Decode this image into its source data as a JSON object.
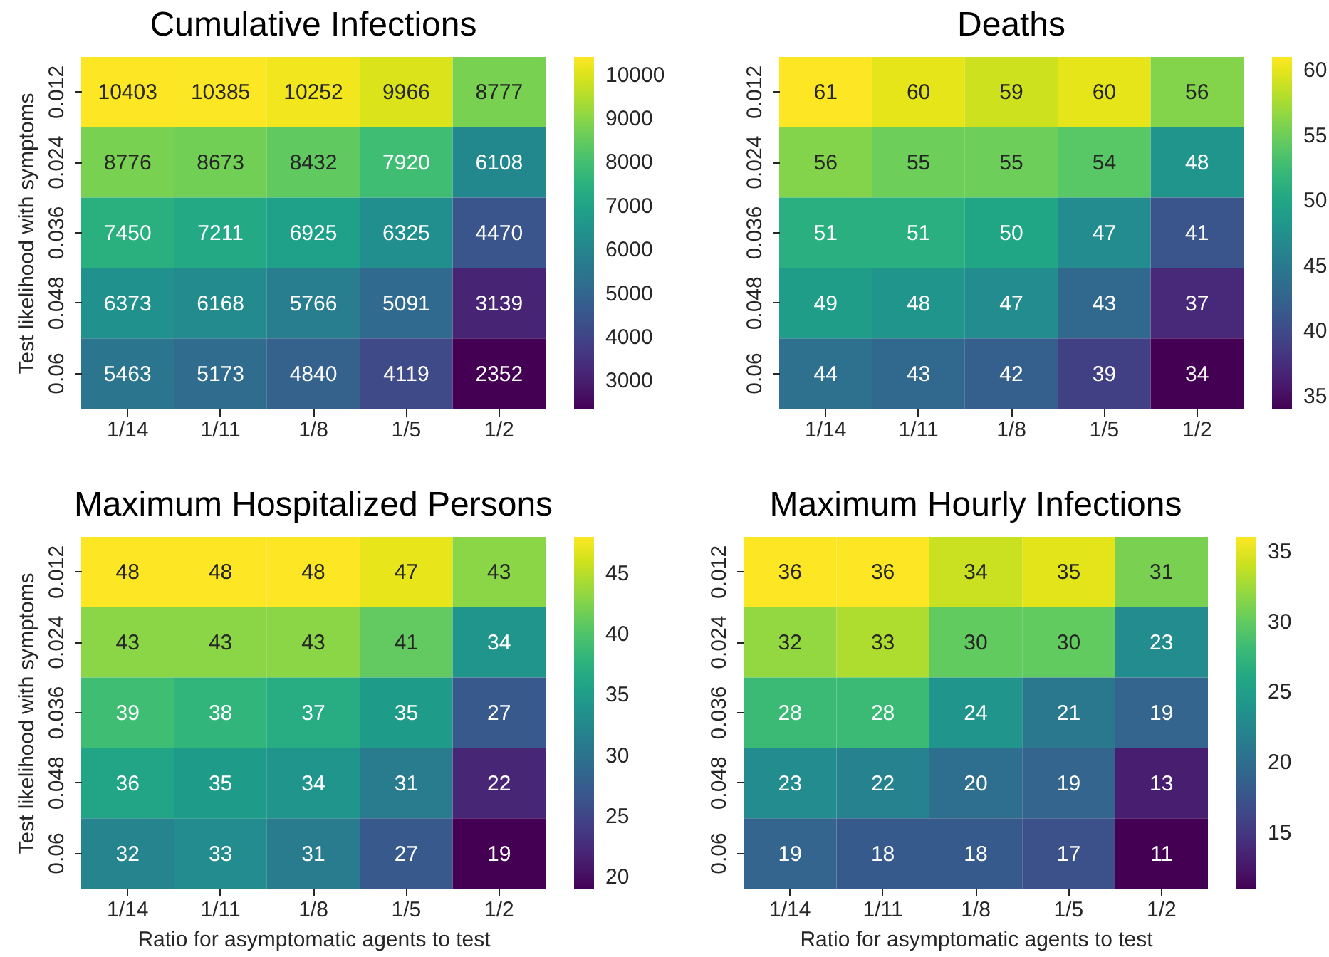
{
  "chart_data": [
    {
      "type": "heatmap",
      "title": "Cumulative Infections",
      "ylabel": "Test likelihood with symptoms",
      "categories": [
        "1/14",
        "1/11",
        "1/8",
        "1/5",
        "1/2"
      ],
      "y_categories": [
        "0.012",
        "0.024",
        "0.036",
        "0.048",
        "0.06"
      ],
      "cells": [
        [
          10403,
          10385,
          10252,
          9966,
          8777
        ],
        [
          8776,
          8673,
          8432,
          7920,
          6108
        ],
        [
          7450,
          7211,
          6925,
          6325,
          4470
        ],
        [
          6373,
          6168,
          5766,
          5091,
          3139
        ],
        [
          5463,
          5173,
          4840,
          4119,
          2352
        ]
      ],
      "clim": [
        2352,
        10403
      ],
      "cticks": [
        3000,
        4000,
        5000,
        6000,
        7000,
        8000,
        9000,
        10000
      ],
      "data_labels": true
    },
    {
      "type": "heatmap",
      "title": "Deaths",
      "categories": [
        "1/14",
        "1/11",
        "1/8",
        "1/5",
        "1/2"
      ],
      "y_categories": [
        "0.012",
        "0.024",
        "0.036",
        "0.048",
        "0.06"
      ],
      "cells": [
        [
          61,
          60,
          59,
          60,
          56
        ],
        [
          56,
          55,
          55,
          54,
          48
        ],
        [
          51,
          51,
          50,
          47,
          41
        ],
        [
          49,
          48,
          47,
          43,
          37
        ],
        [
          44,
          43,
          42,
          39,
          34
        ]
      ],
      "clim": [
        34,
        61
      ],
      "cticks": [
        35,
        40,
        45,
        50,
        55,
        60
      ],
      "data_labels": true
    },
    {
      "type": "heatmap",
      "title": "Maximum Hospitalized Persons",
      "xlabel": "Ratio for asymptomatic agents to test",
      "ylabel": "Test likelihood with symptoms",
      "categories": [
        "1/14",
        "1/11",
        "1/8",
        "1/5",
        "1/2"
      ],
      "y_categories": [
        "0.012",
        "0.024",
        "0.036",
        "0.048",
        "0.06"
      ],
      "cells": [
        [
          48,
          48,
          48,
          47,
          43
        ],
        [
          43,
          43,
          43,
          41,
          34
        ],
        [
          39,
          38,
          37,
          35,
          27
        ],
        [
          36,
          35,
          34,
          31,
          22
        ],
        [
          32,
          33,
          31,
          27,
          19
        ]
      ],
      "clim": [
        19,
        48
      ],
      "cticks": [
        20,
        25,
        30,
        35,
        40,
        45
      ],
      "data_labels": true
    },
    {
      "type": "heatmap",
      "title": "Maximum Hourly Infections",
      "xlabel": "Ratio for asymptomatic agents to test",
      "categories": [
        "1/14",
        "1/11",
        "1/8",
        "1/5",
        "1/2"
      ],
      "y_categories": [
        "0.012",
        "0.024",
        "0.036",
        "0.048",
        "0.06"
      ],
      "cells": [
        [
          36,
          36,
          34,
          35,
          31
        ],
        [
          32,
          33,
          30,
          30,
          23
        ],
        [
          28,
          28,
          24,
          21,
          19
        ],
        [
          23,
          22,
          20,
          19,
          13
        ],
        [
          19,
          18,
          18,
          17,
          11
        ]
      ],
      "clim": [
        11,
        36
      ],
      "cticks": [
        15,
        20,
        25,
        30,
        35
      ],
      "data_labels": true
    }
  ]
}
